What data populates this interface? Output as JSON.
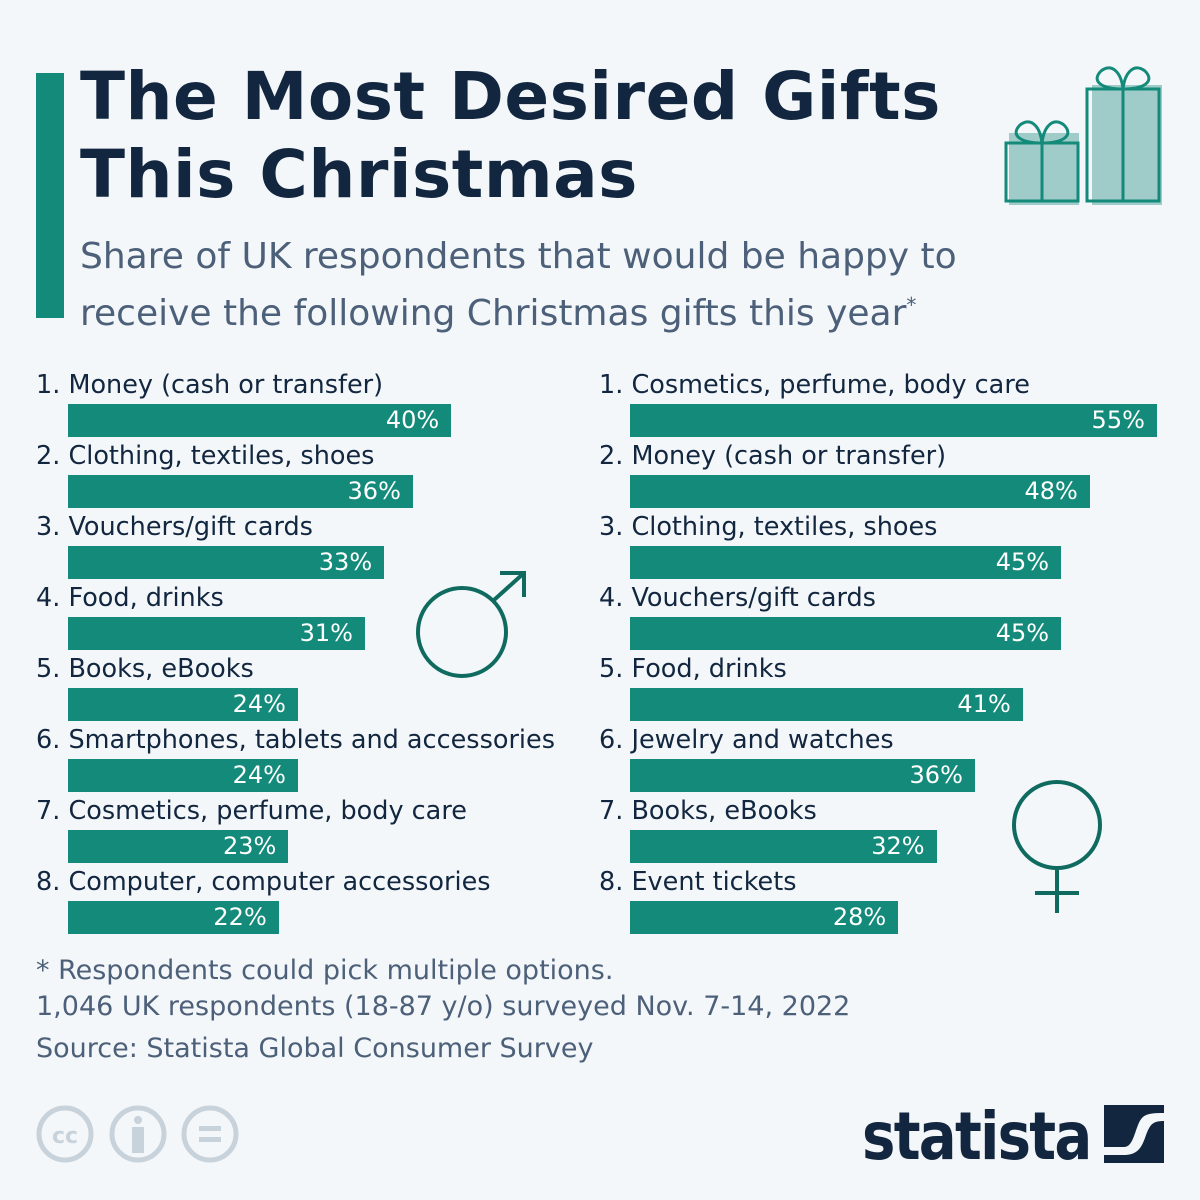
{
  "title_line1": "The Most Desired Gifts",
  "title_line2": "This Christmas",
  "subtitle": "Share of UK respondents that would be happy to receive the following Christmas gifts this year",
  "subtitle_mark": "*",
  "colors": {
    "bar": "#138a7a",
    "title": "#12273f",
    "text": "#4d6079"
  },
  "chart_data": [
    {
      "type": "bar",
      "orientation": "horizontal",
      "group_icon": "male-symbol",
      "categories": [
        "Money (cash or transfer)",
        "Clothing, textiles, shoes",
        "Vouchers/gift cards",
        "Food, drinks",
        "Books, eBooks",
        "Smartphones, tablets and accessories",
        "Cosmetics, perfume, body care",
        "Computer, computer accessories"
      ],
      "values": [
        40,
        36,
        33,
        31,
        24,
        24,
        23,
        22
      ],
      "labels": [
        "40%",
        "36%",
        "33%",
        "31%",
        "24%",
        "24%",
        "23%",
        "22%"
      ],
      "unit": "%"
    },
    {
      "type": "bar",
      "orientation": "horizontal",
      "group_icon": "female-symbol",
      "categories": [
        "Cosmetics, perfume, body care",
        "Money (cash or transfer)",
        "Clothing, textiles, shoes",
        "Vouchers/gift cards",
        "Food, drinks",
        "Jewelry and watches",
        "Books, eBooks",
        "Event tickets"
      ],
      "values": [
        55,
        48,
        45,
        45,
        41,
        36,
        32,
        28
      ],
      "labels": [
        "55%",
        "48%",
        "45%",
        "45%",
        "41%",
        "36%",
        "32%",
        "28%"
      ],
      "unit": "%"
    }
  ],
  "footer": {
    "note": "* Respondents could pick multiple options.",
    "survey": "1,046 UK respondents (18-87 y/o) surveyed Nov. 7-14, 2022",
    "source": "Source: Statista Global Consumer Survey"
  },
  "logo": "statista"
}
